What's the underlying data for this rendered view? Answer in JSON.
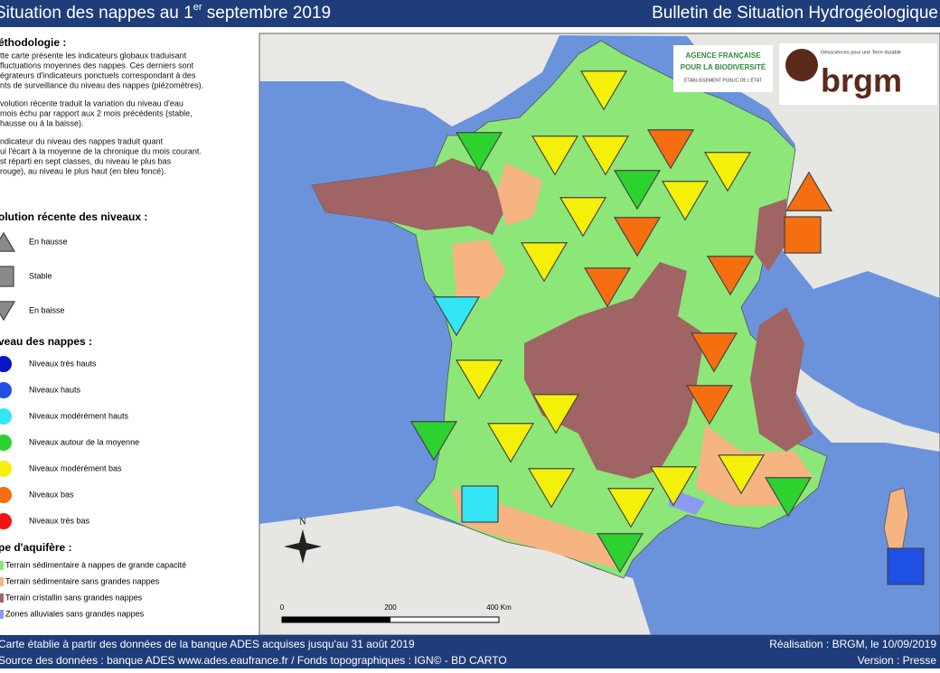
{
  "header": {
    "title": "Situation des nappes au 1",
    "title_sup": "er",
    "title_end": " septembre 2019",
    "bulletin": "Bulletin de Situation Hydrogéologique"
  },
  "legend": {
    "methodology_title": "éthodologie :",
    "paragraphs": [
      [
        "tte carte présente les indicateurs globaux traduisant",
        "fluctuations moyennes des nappes. Ces derniers sont",
        "égrateurs d'indicateurs ponctuels correspondant à des",
        "nts de surveillance du niveau des nappes (piézomètres)."
      ],
      [
        "volution récente traduit la variation du niveau d'eau",
        "mois échu par rapport aux 2 mois précédents (stable,",
        "hausse ou à la baisse)."
      ],
      [
        "ndicateur du niveau des nappes traduit quant",
        "ui l'écart à la moyenne de la chronique du mois courant.",
        "st réparti en sept classes, du niveau le plus bas",
        "rouge), au niveau le plus haut (en bleu foncé)."
      ]
    ],
    "trend_title": "olution récente des niveaux :",
    "trends": [
      "En hausse",
      "Stable",
      "En baisse"
    ],
    "level_title": "veau des nappes :",
    "levels": [
      {
        "name": "Niveaux très hauts",
        "color": "#0a14c8"
      },
      {
        "name": "Niveaux hauts",
        "color": "#1e50e6"
      },
      {
        "name": "Niveaux modérément hauts",
        "color": "#32e6f5"
      },
      {
        "name": "Niveaux autour de la moyenne",
        "color": "#2ed22e"
      },
      {
        "name": "Niveaux modérément bas",
        "color": "#f5f00a"
      },
      {
        "name": "Niveaux bas",
        "color": "#f56e0f"
      },
      {
        "name": "Niveaux très bas",
        "color": "#f01414"
      }
    ],
    "aquifer_title": "pe d'aquifère :",
    "aquifers": [
      {
        "name": "Terrain sédimentaire à nappes de grande capacité",
        "color": "#8ce678"
      },
      {
        "name": "Terrain sédimentaire sans grandes nappes",
        "color": "#f5b482"
      },
      {
        "name": "Terrain cristallin sans grandes nappes",
        "color": "#a06464"
      },
      {
        "name": "Zones alluviales sans grandes nappes",
        "color": "#8c9bf0"
      }
    ]
  },
  "map": {
    "afb": [
      "AGENCE FRANÇAISE",
      "POUR LA BIODIVERSITÉ",
      "ÉTABLISSEMENT PUBLIC DE L'ÉTAT"
    ],
    "brgm_tagline": "Géosciences pour une Terre durable",
    "brgm": "brgm",
    "north": "N",
    "scale": [
      "0",
      "200",
      "400 Km"
    ]
  },
  "footer": {
    "left": [
      "Carte établie à partir des données de la banque ADES acquises jusqu'au 31 août 2019",
      "Source des données : banque ADES www.ades.eaufrance.fr / Fonds topographiques : IGN© - BD CARTO"
    ],
    "right": [
      "Réalisation : BRGM, le 10/09/2019",
      "Version : Presse"
    ]
  }
}
